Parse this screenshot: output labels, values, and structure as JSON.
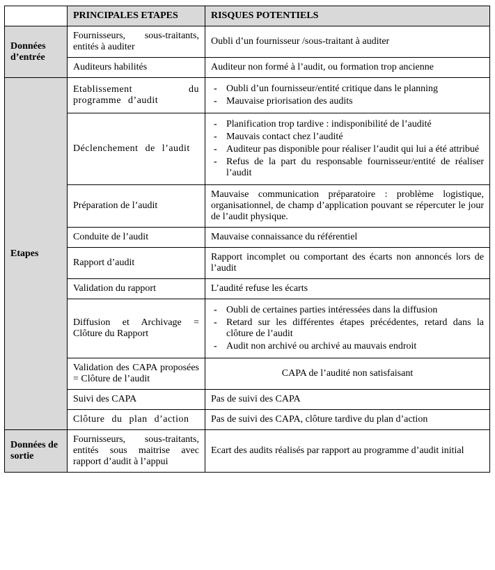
{
  "headers": {
    "col1": "PRINCIPALES ETAPES",
    "col2": "RISQUES POTENTIELS"
  },
  "sections": {
    "entree": "Données d’entrée",
    "etapes": "Etapes",
    "sortie": "Données de sortie"
  },
  "rows": {
    "entree1": {
      "step": "Fournisseurs, sous-traitants, entités à auditer",
      "risk": "Oubli d’un fournisseur /sous-traitant à auditer"
    },
    "entree2": {
      "step": "Auditeurs habilités",
      "risk": "Auditeur non formé à l’audit, ou formation trop ancienne"
    },
    "etapes1": {
      "step": "Etablissement du programme d’audit",
      "risk_items": [
        "Oubli d’un fournisseur/entité critique dans le planning",
        "Mauvaise priorisation des audits"
      ]
    },
    "etapes2": {
      "step": "Déclenchement de l’audit",
      "risk_items": [
        "Planification trop tardive : indisponibilité de l’audité",
        "Mauvais contact chez l’audité",
        "Auditeur pas disponible pour réaliser l’audit qui lui a été attribué",
        "Refus de la part du responsable fournisseur/entité de réaliser l’audit"
      ]
    },
    "etapes3": {
      "step": "Préparation de l’audit",
      "risk": "Mauvaise communication préparatoire : problème logistique, organisationnel, de champ d’application pouvant se répercuter le jour de l’audit physique."
    },
    "etapes4": {
      "step": "Conduite de l’audit",
      "risk": "Mauvaise connaissance du référentiel"
    },
    "etapes5": {
      "step": "Rapport d’audit",
      "risk": "Rapport incomplet ou comportant des écarts non annoncés lors de l’audit"
    },
    "etapes6": {
      "step": "Validation du rapport",
      "risk": "L’audité refuse les écarts"
    },
    "etapes7": {
      "step": "Diffusion et Archivage = Clôture du Rapport",
      "risk_items": [
        "Oubli de certaines parties intéressées dans la diffusion",
        "Retard sur les différentes étapes précédentes, retard dans la clôture de l’audit",
        "Audit non archivé ou archivé au mauvais endroit"
      ]
    },
    "etapes8": {
      "step": "Validation des CAPA proposées = Clôture de l’audit",
      "risk": "CAPA de l’audité non satisfaisant"
    },
    "etapes9": {
      "step": "Suivi des CAPA",
      "risk": "Pas de suivi des CAPA"
    },
    "etapes10": {
      "step": "Clôture du plan d’action",
      "risk": "Pas de suivi des CAPA, clôture tardive du plan d’action"
    },
    "sortie1": {
      "step": "Fournisseurs, sous-traitants, entités sous maitrise avec rapport d’audit à l’appui",
      "risk": "Ecart des audits réalisés par rapport au programme d’audit initial"
    }
  }
}
